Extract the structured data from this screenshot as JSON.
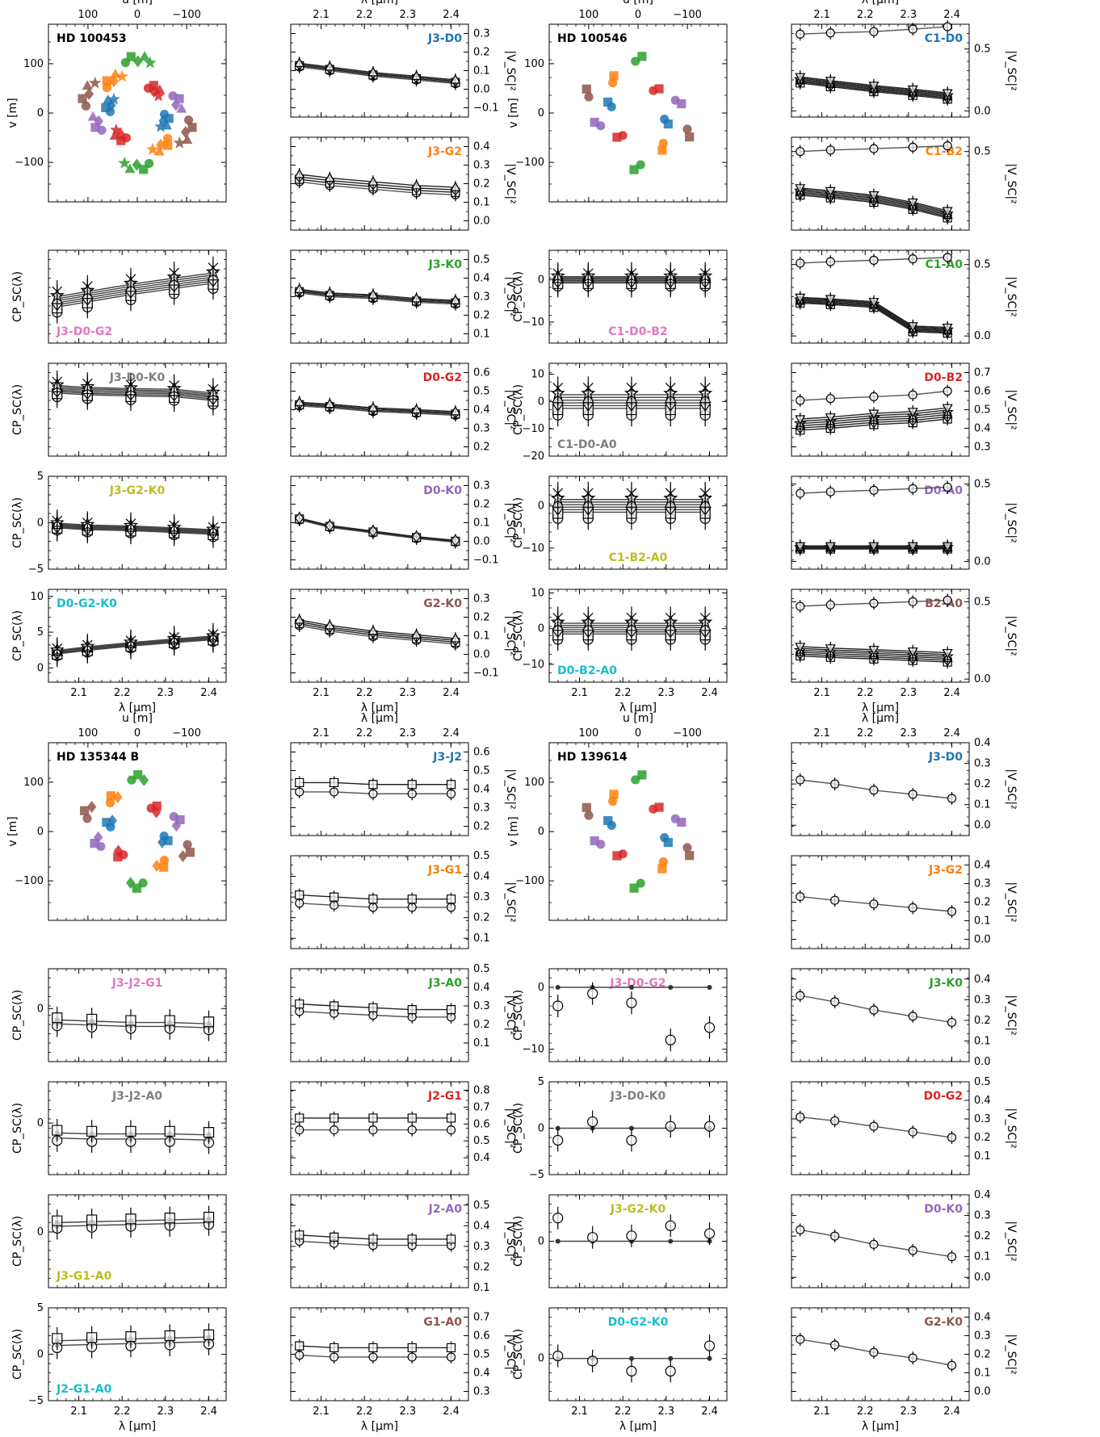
{
  "palette": {
    "J3-D0": "#1f77b4",
    "J3-G2": "#ff7f0e",
    "J3-K0": "#2ca02c",
    "D0-G2": "#d62728",
    "D0-K0": "#9467bd",
    "G2-K0": "#8c564b",
    "J3-D0-G2": "#e377c2",
    "J3-D0-K0": "#7f7f7f",
    "J3-G2-K0": "#bcbd22",
    "D0-G2-K0": "#17becf",
    "C1-D0": "#1f77b4",
    "C1-B2": "#ff7f0e",
    "C1-A0": "#2ca02c",
    "D0-B2": "#d62728",
    "D0-A0": "#9467bd",
    "B2-A0": "#8c564b",
    "C1-D0-B2": "#e377c2",
    "C1-D0-A0": "#7f7f7f",
    "C1-B2-A0": "#bcbd22",
    "D0-B2-A0": "#17becf",
    "J3-J2": "#1f77b4",
    "J3-G1": "#ff7f0e",
    "J3-A0": "#2ca02c",
    "J2-G1": "#d62728",
    "J2-A0": "#9467bd",
    "G1-A0": "#8c564b",
    "J3-J2-G1": "#e377c2",
    "J3-J2-A0": "#7f7f7f",
    "J3-G1-A0": "#bcbd22",
    "J2-G1-A0": "#17becf"
  },
  "labels": {
    "u": "u [m]",
    "v": "v [m]",
    "lambda": "λ [μm]",
    "vis": "|V_SC|²",
    "cp": "CP_SC(λ)"
  },
  "chart_data": [
    {
      "type": "scatter",
      "star": "HD 100453",
      "uv": {
        "xlim": [
          180,
          -180
        ],
        "ylim": [
          -180,
          180
        ],
        "xticks": [
          100,
          0,
          -100
        ],
        "yticks": [
          100,
          0,
          -100
        ]
      },
      "x": [
        2.05,
        2.12,
        2.22,
        2.32,
        2.41
      ],
      "vis": [
        {
          "baseline": "J3-D0",
          "ylim": [
            -0.15,
            0.35
          ],
          "yticks": [
            -0.1,
            0.0,
            0.1,
            0.2,
            0.3
          ],
          "values": [
            0.13,
            0.11,
            0.08,
            0.06,
            0.04
          ],
          "spread": 0.02,
          "n": 4
        },
        {
          "baseline": "J3-G2",
          "ylim": [
            -0.05,
            0.45
          ],
          "yticks": [
            0.0,
            0.1,
            0.2,
            0.3,
            0.4
          ],
          "values": [
            0.23,
            0.21,
            0.19,
            0.17,
            0.16
          ],
          "spread": 0.04,
          "n": 4
        },
        {
          "baseline": "J3-K0",
          "ylim": [
            0.05,
            0.55
          ],
          "yticks": [
            0.1,
            0.2,
            0.3,
            0.4,
            0.5
          ],
          "values": [
            0.33,
            0.31,
            0.3,
            0.28,
            0.27
          ],
          "spread": 0.02,
          "n": 4
        },
        {
          "baseline": "D0-G2",
          "ylim": [
            0.15,
            0.65
          ],
          "yticks": [
            0.2,
            0.3,
            0.4,
            0.5,
            0.6
          ],
          "values": [
            0.43,
            0.42,
            0.4,
            0.39,
            0.38
          ],
          "spread": 0.02,
          "n": 4
        },
        {
          "baseline": "D0-K0",
          "ylim": [
            -0.15,
            0.35
          ],
          "yticks": [
            -0.1,
            0.0,
            0.1,
            0.2,
            0.3
          ],
          "values": [
            0.12,
            0.08,
            0.05,
            0.02,
            0.0
          ],
          "spread": 0.01,
          "n": 3
        },
        {
          "baseline": "G2-K0",
          "ylim": [
            -0.15,
            0.35
          ],
          "yticks": [
            -0.1,
            0.0,
            0.1,
            0.2,
            0.3
          ],
          "values": [
            0.17,
            0.14,
            0.11,
            0.09,
            0.07
          ],
          "spread": 0.03,
          "n": 4
        }
      ],
      "cp": [
        {
          "triangle": "J3-D0-G2",
          "ylim": [
            -2,
            7
          ],
          "yticks": [],
          "values": [
            2.0,
            2.5,
            3.2,
            3.8,
            4.3
          ],
          "spread": 1.0,
          "n": 6,
          "label_pos": "bottom-left"
        },
        {
          "triangle": "J3-D0-K0",
          "ylim": [
            -18,
            7
          ],
          "yticks": [],
          "values": [
            0.0,
            -0.5,
            -0.8,
            -1.0,
            -2.0
          ],
          "spread": 2.0,
          "n": 6,
          "label_pos": "top-center"
        },
        {
          "triangle": "J3-G2-K0",
          "ylim": [
            -5,
            5
          ],
          "yticks": [
            -5,
            0,
            5
          ],
          "values": [
            -0.3,
            -0.5,
            -0.6,
            -0.8,
            -1.0
          ],
          "spread": 0.5,
          "n": 6,
          "label_pos": "top-center"
        },
        {
          "triangle": "D0-G2-K0",
          "ylim": [
            -2,
            11
          ],
          "yticks": [
            0,
            5,
            10
          ],
          "values": [
            2.2,
            2.7,
            3.3,
            3.8,
            4.2
          ],
          "spread": 0.5,
          "n": 6,
          "label_pos": "top-left"
        }
      ]
    },
    {
      "type": "scatter",
      "star": "HD 100546",
      "uv": {
        "xlim": [
          180,
          -180
        ],
        "ylim": [
          -180,
          180
        ],
        "xticks": [
          100,
          0,
          -100
        ],
        "yticks": [
          100,
          0,
          -100
        ]
      },
      "x": [
        2.05,
        2.12,
        2.22,
        2.31,
        2.39
      ],
      "vis": [
        {
          "baseline": "C1-D0",
          "ylim": [
            -0.05,
            0.7
          ],
          "yticks": [
            0.0,
            0.5
          ],
          "values": [
            0.62,
            0.63,
            0.64,
            0.66,
            0.68
          ],
          "spread": 0.0,
          "n": 1,
          "extra": [
            0.25,
            0.22,
            0.18,
            0.15,
            0.12
          ],
          "extra_spread": 0.05,
          "extra_n": 6
        },
        {
          "baseline": "C1-B2",
          "ylim": [
            -0.05,
            0.6
          ],
          "yticks": [
            0.5
          ],
          "values": [
            0.5,
            0.51,
            0.52,
            0.53,
            0.54
          ],
          "spread": 0.0,
          "n": 1,
          "extra": [
            0.22,
            0.2,
            0.17,
            0.12,
            0.06
          ],
          "extra_spread": 0.05,
          "extra_n": 6
        },
        {
          "baseline": "C1-A0",
          "ylim": [
            -0.05,
            0.6
          ],
          "yticks": [
            0.0,
            0.5
          ],
          "values": [
            0.51,
            0.52,
            0.53,
            0.54,
            0.55
          ],
          "spread": 0.0,
          "n": 1,
          "extra": [
            0.25,
            0.24,
            0.22,
            0.05,
            0.04
          ],
          "extra_spread": 0.04,
          "extra_n": 6
        },
        {
          "baseline": "D0-B2",
          "ylim": [
            0.25,
            0.75
          ],
          "yticks": [
            0.3,
            0.4,
            0.5,
            0.6,
            0.7
          ],
          "values": [
            0.55,
            0.56,
            0.57,
            0.58,
            0.6
          ],
          "spread": 0.0,
          "n": 1,
          "extra": [
            0.42,
            0.43,
            0.45,
            0.46,
            0.48
          ],
          "extra_spread": 0.06,
          "extra_n": 6
        },
        {
          "baseline": "D0-A0",
          "ylim": [
            -0.05,
            0.55
          ],
          "yticks": [
            0.0,
            0.5
          ],
          "values": [
            0.44,
            0.45,
            0.46,
            0.47,
            0.48
          ],
          "spread": 0.0,
          "n": 1,
          "extra": [
            0.09,
            0.09,
            0.09,
            0.09,
            0.09
          ],
          "extra_spread": 0.02,
          "extra_n": 6
        },
        {
          "baseline": "B2-A0",
          "ylim": [
            -0.02,
            0.58
          ],
          "yticks": [
            0.0,
            0.5
          ],
          "values": [
            0.47,
            0.48,
            0.49,
            0.5,
            0.51
          ],
          "spread": 0.0,
          "n": 1,
          "extra": [
            0.18,
            0.17,
            0.16,
            0.15,
            0.14
          ],
          "extra_spread": 0.06,
          "extra_n": 6
        }
      ],
      "cp": [
        {
          "triangle": "C1-D0-B2",
          "ylim": [
            -15,
            7
          ],
          "yticks": [
            -10,
            0
          ],
          "values": [
            0.0,
            0.0,
            0.0,
            0.0,
            0.0
          ],
          "spread": 1.5,
          "n": 6,
          "label_pos": "bottom-center"
        },
        {
          "triangle": "C1-D0-A0",
          "ylim": [
            -20,
            14
          ],
          "yticks": [
            -20,
            -10,
            0,
            10
          ],
          "values": [
            0.0,
            0.0,
            0.0,
            0.0,
            0.0
          ],
          "spread": 5.0,
          "n": 6,
          "label_pos": "bottom-left"
        },
        {
          "triangle": "C1-B2-A0",
          "ylim": [
            -15,
            7
          ],
          "yticks": [
            -10,
            0
          ],
          "values": [
            0.0,
            0.0,
            0.0,
            0.0,
            0.0
          ],
          "spread": 3.0,
          "n": 6,
          "label_pos": "bottom-center"
        },
        {
          "triangle": "D0-B2-A0",
          "ylim": [
            -15,
            11
          ],
          "yticks": [
            -10,
            0,
            10
          ],
          "values": [
            0.0,
            0.0,
            0.0,
            0.0,
            0.0
          ],
          "spread": 3.0,
          "n": 6,
          "label_pos": "bottom-left"
        }
      ]
    },
    {
      "type": "scatter",
      "star": "HD 135344 B",
      "uv": {
        "xlim": [
          180,
          -180
        ],
        "ylim": [
          -180,
          180
        ],
        "xticks": [
          100,
          0,
          -100
        ],
        "yticks": [
          100,
          0,
          -100
        ]
      },
      "x": [
        2.05,
        2.13,
        2.22,
        2.31,
        2.4
      ],
      "vis": [
        {
          "baseline": "J3-J2",
          "ylim": [
            0.15,
            0.65
          ],
          "yticks": [
            0.2,
            0.3,
            0.4,
            0.5,
            0.6
          ],
          "values": [
            0.41,
            0.41,
            0.4,
            0.4,
            0.4
          ],
          "spread": 0.05,
          "n": 2
        },
        {
          "baseline": "J3-G1",
          "ylim": [
            0.05,
            0.5
          ],
          "yticks": [
            0.1,
            0.2,
            0.3,
            0.4,
            0.5
          ],
          "values": [
            0.29,
            0.28,
            0.27,
            0.27,
            0.27
          ],
          "spread": 0.04,
          "n": 2
        },
        {
          "baseline": "J3-A0",
          "ylim": [
            0.0,
            0.5
          ],
          "yticks": [
            0.1,
            0.2,
            0.3,
            0.4,
            0.5
          ],
          "values": [
            0.29,
            0.28,
            0.27,
            0.26,
            0.26
          ],
          "spread": 0.04,
          "n": 2
        },
        {
          "baseline": "J2-G1",
          "ylim": [
            0.3,
            0.85
          ],
          "yticks": [
            0.4,
            0.5,
            0.6,
            0.7,
            0.8
          ],
          "values": [
            0.6,
            0.6,
            0.6,
            0.6,
            0.6
          ],
          "spread": 0.07,
          "n": 2
        },
        {
          "baseline": "J2-A0",
          "ylim": [
            0.1,
            0.55
          ],
          "yticks": [
            0.1,
            0.2,
            0.3,
            0.4,
            0.5
          ],
          "values": [
            0.34,
            0.33,
            0.32,
            0.32,
            0.32
          ],
          "spread": 0.03,
          "n": 2
        },
        {
          "baseline": "G1-A0",
          "ylim": [
            0.25,
            0.75
          ],
          "yticks": [
            0.3,
            0.4,
            0.5,
            0.6,
            0.7
          ],
          "values": [
            0.52,
            0.51,
            0.51,
            0.51,
            0.51
          ],
          "spread": 0.05,
          "n": 2
        }
      ],
      "cp": [
        {
          "triangle": "J3-J2-G1",
          "ylim": [
            -4,
            3
          ],
          "yticks": [
            0
          ],
          "values": [
            -1.0,
            -1.1,
            -1.2,
            -1.2,
            -1.3
          ],
          "spread": 0.3,
          "n": 2,
          "label_pos": "top-center"
        },
        {
          "triangle": "J3-J2-A0",
          "ylim": [
            -5,
            4
          ],
          "yticks": [
            0
          ],
          "values": [
            -1.2,
            -1.3,
            -1.3,
            -1.3,
            -1.4
          ],
          "spread": 0.5,
          "n": 2,
          "label_pos": "top-center"
        },
        {
          "triangle": "J3-G1-A0",
          "ylim": [
            -6,
            4
          ],
          "yticks": [
            0
          ],
          "values": [
            0.8,
            0.9,
            1.0,
            1.1,
            1.2
          ],
          "spread": 0.4,
          "n": 2,
          "label_pos": "bottom-left"
        },
        {
          "triangle": "J2-G1-A0",
          "ylim": [
            -5,
            5
          ],
          "yticks": [
            -5,
            0,
            5
          ],
          "values": [
            1.2,
            1.3,
            1.4,
            1.5,
            1.6
          ],
          "spread": 0.5,
          "n": 2,
          "label_pos": "bottom-left"
        }
      ]
    },
    {
      "type": "scatter",
      "star": "HD 139614",
      "uv": {
        "xlim": [
          180,
          -180
        ],
        "ylim": [
          -180,
          180
        ],
        "xticks": [
          100,
          0,
          -100
        ],
        "yticks": [
          100,
          0,
          -100
        ]
      },
      "x": [
        2.05,
        2.13,
        2.22,
        2.31,
        2.4
      ],
      "vis": [
        {
          "baseline": "J3-D0",
          "ylim": [
            -0.05,
            0.4
          ],
          "yticks": [
            0.0,
            0.1,
            0.2,
            0.3,
            0.4
          ],
          "values": [
            0.22,
            0.2,
            0.17,
            0.15,
            0.13
          ],
          "spread": 0.0,
          "n": 1
        },
        {
          "baseline": "J3-G2",
          "ylim": [
            -0.05,
            0.45
          ],
          "yticks": [
            0.0,
            0.1,
            0.2,
            0.3,
            0.4
          ],
          "values": [
            0.23,
            0.21,
            0.19,
            0.17,
            0.15
          ],
          "spread": 0.0,
          "n": 1
        },
        {
          "baseline": "J3-K0",
          "ylim": [
            0.0,
            0.45
          ],
          "yticks": [
            0.0,
            0.1,
            0.2,
            0.3,
            0.4
          ],
          "values": [
            0.32,
            0.29,
            0.25,
            0.22,
            0.19
          ],
          "spread": 0.0,
          "n": 1
        },
        {
          "baseline": "D0-G2",
          "ylim": [
            0.0,
            0.5
          ],
          "yticks": [
            0.1,
            0.2,
            0.3,
            0.4,
            0.5
          ],
          "values": [
            0.31,
            0.29,
            0.26,
            0.23,
            0.2
          ],
          "spread": 0.0,
          "n": 1
        },
        {
          "baseline": "D0-K0",
          "ylim": [
            -0.05,
            0.4
          ],
          "yticks": [
            0.0,
            0.1,
            0.2,
            0.3,
            0.4
          ],
          "values": [
            0.23,
            0.2,
            0.16,
            0.13,
            0.1
          ],
          "spread": 0.0,
          "n": 1
        },
        {
          "baseline": "G2-K0",
          "ylim": [
            -0.05,
            0.45
          ],
          "yticks": [
            0.0,
            0.1,
            0.2,
            0.3,
            0.4
          ],
          "values": [
            0.28,
            0.25,
            0.21,
            0.18,
            0.14
          ],
          "spread": 0.0,
          "n": 1
        }
      ],
      "cp": [
        {
          "triangle": "J3-D0-G2",
          "ylim": [
            -12,
            3
          ],
          "yticks": [
            -10,
            0
          ],
          "values": [
            0.0,
            0.0,
            0.0,
            0.0,
            0.0
          ],
          "obs": [
            -3,
            -1,
            -2.5,
            -8.5,
            -6.5
          ],
          "spread": 0.0,
          "n": 1,
          "label_pos": "top-center"
        },
        {
          "triangle": "J3-D0-K0",
          "ylim": [
            -5,
            5
          ],
          "yticks": [
            -5,
            0,
            5
          ],
          "values": [
            0.0,
            0.0,
            0.0,
            0.0,
            0.0
          ],
          "obs": [
            -1.3,
            0.7,
            -1.3,
            0.2,
            0.2
          ],
          "spread": 0.0,
          "n": 1,
          "label_pos": "top-center"
        },
        {
          "triangle": "J3-G2-K0",
          "ylim": [
            -6,
            6
          ],
          "yticks": [
            0
          ],
          "values": [
            0.0,
            0.0,
            0.0,
            0.0,
            0.0
          ],
          "obs": [
            3,
            0.5,
            0.7,
            2,
            1
          ],
          "spread": 0.0,
          "n": 1,
          "label_pos": "top-center"
        },
        {
          "triangle": "D0-G2-K0",
          "ylim": [
            -5,
            6
          ],
          "yticks": [
            0
          ],
          "values": [
            0.0,
            0.0,
            0.0,
            0.0,
            0.0
          ],
          "obs": [
            0.3,
            -0.3,
            -1.5,
            -1.5,
            1.5
          ],
          "spread": 0.0,
          "n": 1,
          "label_pos": "top-center"
        }
      ]
    }
  ]
}
